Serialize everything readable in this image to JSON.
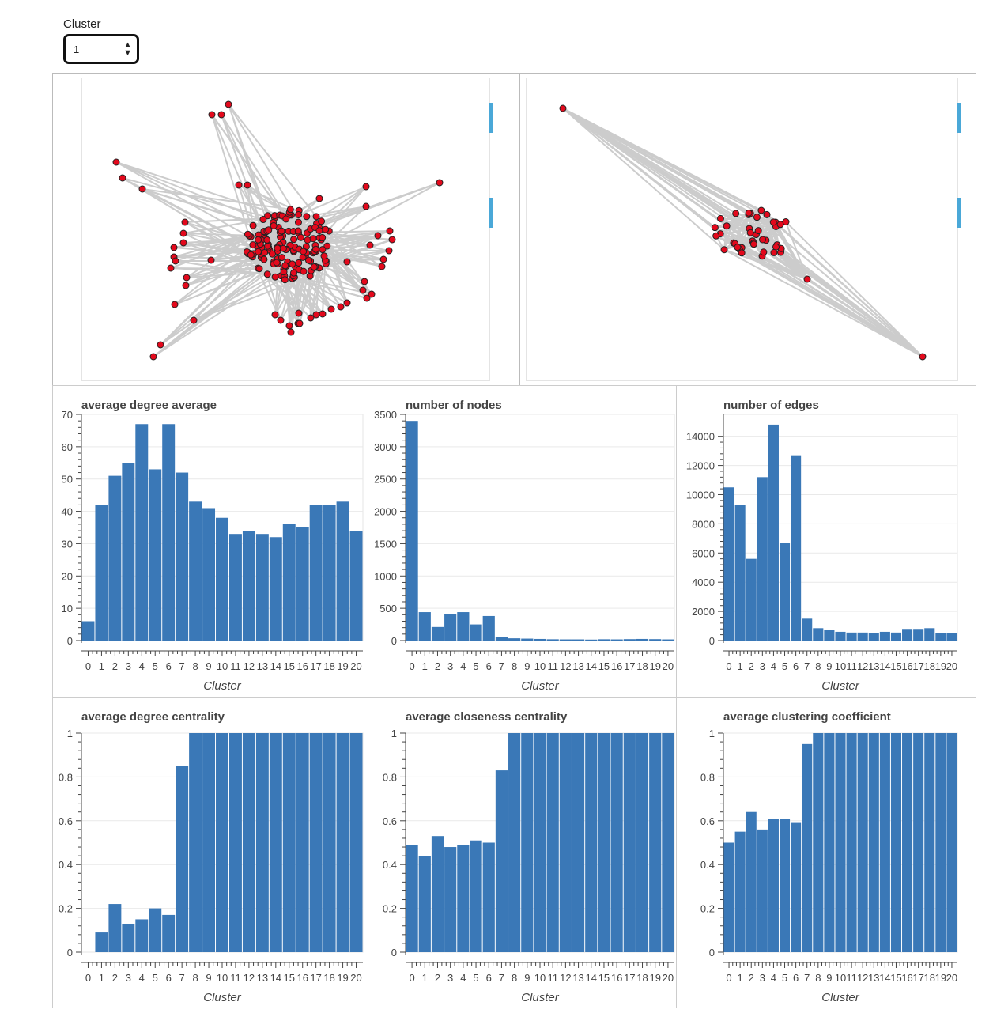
{
  "widget": {
    "label": "Cluster",
    "value": "1"
  },
  "graphs": {
    "left": {
      "description": "network graph of selected cluster"
    },
    "right": {
      "description": "network graph of cluster detail"
    },
    "node_color": "#e3091c",
    "edge_color": "#cccccc"
  },
  "accent": "#3a78b7",
  "chart_data": [
    {
      "type": "bar",
      "title": "average degree average",
      "xlabel": "Cluster",
      "ylabel": "",
      "categories": [
        "0",
        "1",
        "2",
        "3",
        "4",
        "5",
        "6",
        "7",
        "8",
        "9",
        "10",
        "11",
        "12",
        "13",
        "14",
        "15",
        "16",
        "17",
        "18",
        "19",
        "20"
      ],
      "values": [
        6,
        42,
        51,
        55,
        67,
        53,
        67,
        52,
        43,
        41,
        38,
        33,
        34,
        33,
        32,
        36,
        35,
        42,
        42,
        43,
        34
      ],
      "ylim": [
        0,
        70
      ],
      "yticks": [
        "0",
        "10",
        "20",
        "30",
        "40",
        "50",
        "60",
        "70"
      ],
      "grid": true
    },
    {
      "type": "bar",
      "title": "number of nodes",
      "xlabel": "Cluster",
      "ylabel": "",
      "categories": [
        "0",
        "1",
        "2",
        "3",
        "4",
        "5",
        "6",
        "7",
        "8",
        "9",
        "10",
        "11",
        "12",
        "13",
        "14",
        "15",
        "16",
        "17",
        "18",
        "19",
        "20"
      ],
      "values": [
        3400,
        440,
        210,
        410,
        440,
        250,
        380,
        60,
        35,
        30,
        25,
        20,
        18,
        18,
        15,
        20,
        18,
        22,
        25,
        22,
        18
      ],
      "ylim": [
        0,
        3500
      ],
      "yticks": [
        "0",
        "500",
        "1000",
        "1500",
        "2000",
        "2500",
        "3000",
        "3500"
      ],
      "grid": true
    },
    {
      "type": "bar",
      "title": "number of edges",
      "xlabel": "Cluster",
      "ylabel": "",
      "categories": [
        "0",
        "1",
        "2",
        "3",
        "4",
        "5",
        "6",
        "7",
        "8",
        "9",
        "10",
        "11",
        "12",
        "13",
        "14",
        "15",
        "16",
        "17",
        "18",
        "19",
        "20"
      ],
      "values": [
        10500,
        9300,
        5600,
        11200,
        14800,
        6700,
        12700,
        1500,
        850,
        750,
        600,
        550,
        550,
        500,
        600,
        550,
        800,
        800,
        850,
        500,
        500
      ],
      "ylim": [
        0,
        15500
      ],
      "yticks": [
        "0",
        "2000",
        "4000",
        "6000",
        "8000",
        "10000",
        "12000",
        "14000"
      ],
      "grid": true
    },
    {
      "type": "bar",
      "title": "average degree centrality",
      "xlabel": "Cluster",
      "ylabel": "",
      "categories": [
        "0",
        "1",
        "2",
        "3",
        "4",
        "5",
        "6",
        "7",
        "8",
        "9",
        "10",
        "11",
        "12",
        "13",
        "14",
        "15",
        "16",
        "17",
        "18",
        "19",
        "20"
      ],
      "values": [
        0,
        0.09,
        0.22,
        0.13,
        0.15,
        0.2,
        0.17,
        0.85,
        1,
        1,
        1,
        1,
        1,
        1,
        1,
        1,
        1,
        1,
        1,
        1,
        1
      ],
      "ylim": [
        0,
        1
      ],
      "yticks": [
        "0",
        "0.2",
        "0.4",
        "0.6",
        "0.8",
        "1"
      ],
      "grid": true
    },
    {
      "type": "bar",
      "title": "average closeness centrality",
      "xlabel": "Cluster",
      "ylabel": "",
      "categories": [
        "0",
        "1",
        "2",
        "3",
        "4",
        "5",
        "6",
        "7",
        "8",
        "9",
        "10",
        "11",
        "12",
        "13",
        "14",
        "15",
        "16",
        "17",
        "18",
        "19",
        "20"
      ],
      "values": [
        0.49,
        0.44,
        0.53,
        0.48,
        0.49,
        0.51,
        0.5,
        0.83,
        1,
        1,
        1,
        1,
        1,
        1,
        1,
        1,
        1,
        1,
        1,
        1,
        1
      ],
      "ylim": [
        0,
        1
      ],
      "yticks": [
        "0",
        "0.2",
        "0.4",
        "0.6",
        "0.8",
        "1"
      ],
      "grid": true
    },
    {
      "type": "bar",
      "title": "average clustering coefficient",
      "xlabel": "Cluster",
      "ylabel": "",
      "categories": [
        "0",
        "1",
        "2",
        "3",
        "4",
        "5",
        "6",
        "7",
        "8",
        "9",
        "10",
        "11",
        "12",
        "13",
        "14",
        "15",
        "16",
        "17",
        "18",
        "19",
        "20"
      ],
      "values": [
        0.5,
        0.55,
        0.64,
        0.56,
        0.61,
        0.61,
        0.59,
        0.95,
        1,
        1,
        1,
        1,
        1,
        1,
        1,
        1,
        1,
        1,
        1,
        1,
        1
      ],
      "ylim": [
        0,
        1
      ],
      "yticks": [
        "0",
        "0.2",
        "0.4",
        "0.6",
        "0.8",
        "1"
      ],
      "grid": true
    }
  ]
}
